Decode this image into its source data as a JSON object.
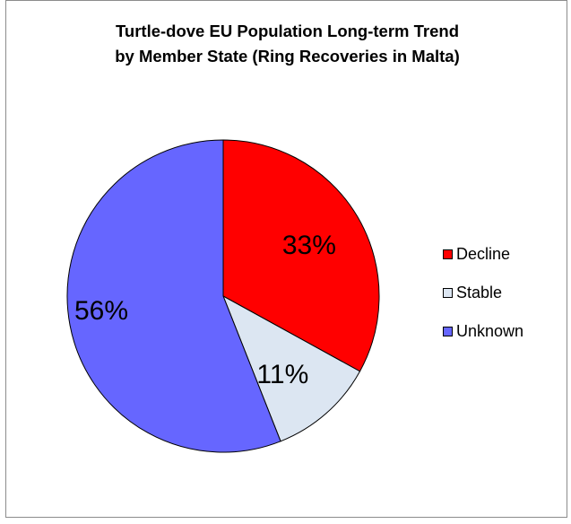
{
  "chart_data": {
    "type": "pie",
    "title": "Turtle-dove EU Population Long-term Trend by Member State (Ring Recoveries in Malta)",
    "title_lines": [
      "Turtle-dove EU Population Long-term Trend",
      "by Member State (Ring Recoveries in Malta)"
    ],
    "categories": [
      "Decline",
      "Stable",
      "Unknown"
    ],
    "values": [
      33,
      11,
      56
    ],
    "data_labels": [
      "33%",
      "11%",
      "56%"
    ],
    "colors": [
      "#ff0000",
      "#dce6f2",
      "#6666ff"
    ],
    "legend_position": "right"
  }
}
